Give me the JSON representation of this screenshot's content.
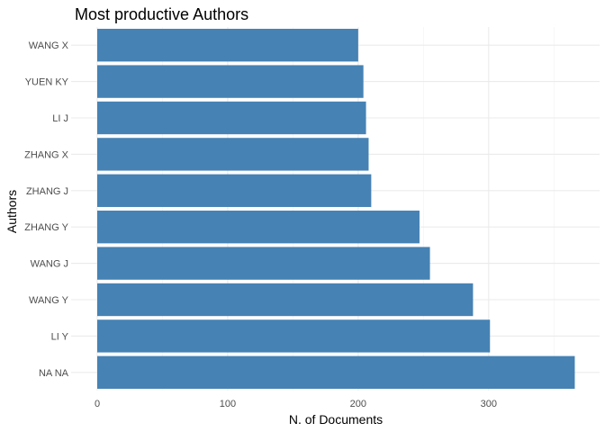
{
  "chart_data": {
    "type": "bar",
    "orientation": "horizontal",
    "title": "Most productive Authors",
    "xlabel": "N. of Documents",
    "ylabel": "Authors",
    "categories": [
      "WANG X",
      "YUEN KY",
      "LI J",
      "ZHANG X",
      "ZHANG J",
      "ZHANG Y",
      "WANG J",
      "WANG Y",
      "LI Y",
      "NA NA"
    ],
    "values": [
      200,
      204,
      206,
      208,
      210,
      247,
      255,
      288,
      301,
      366
    ],
    "x_ticks": [
      0,
      100,
      200,
      300
    ],
    "xlim": [
      0,
      366
    ],
    "bar_color": "#4682B4",
    "grid": true,
    "legend": "none"
  }
}
